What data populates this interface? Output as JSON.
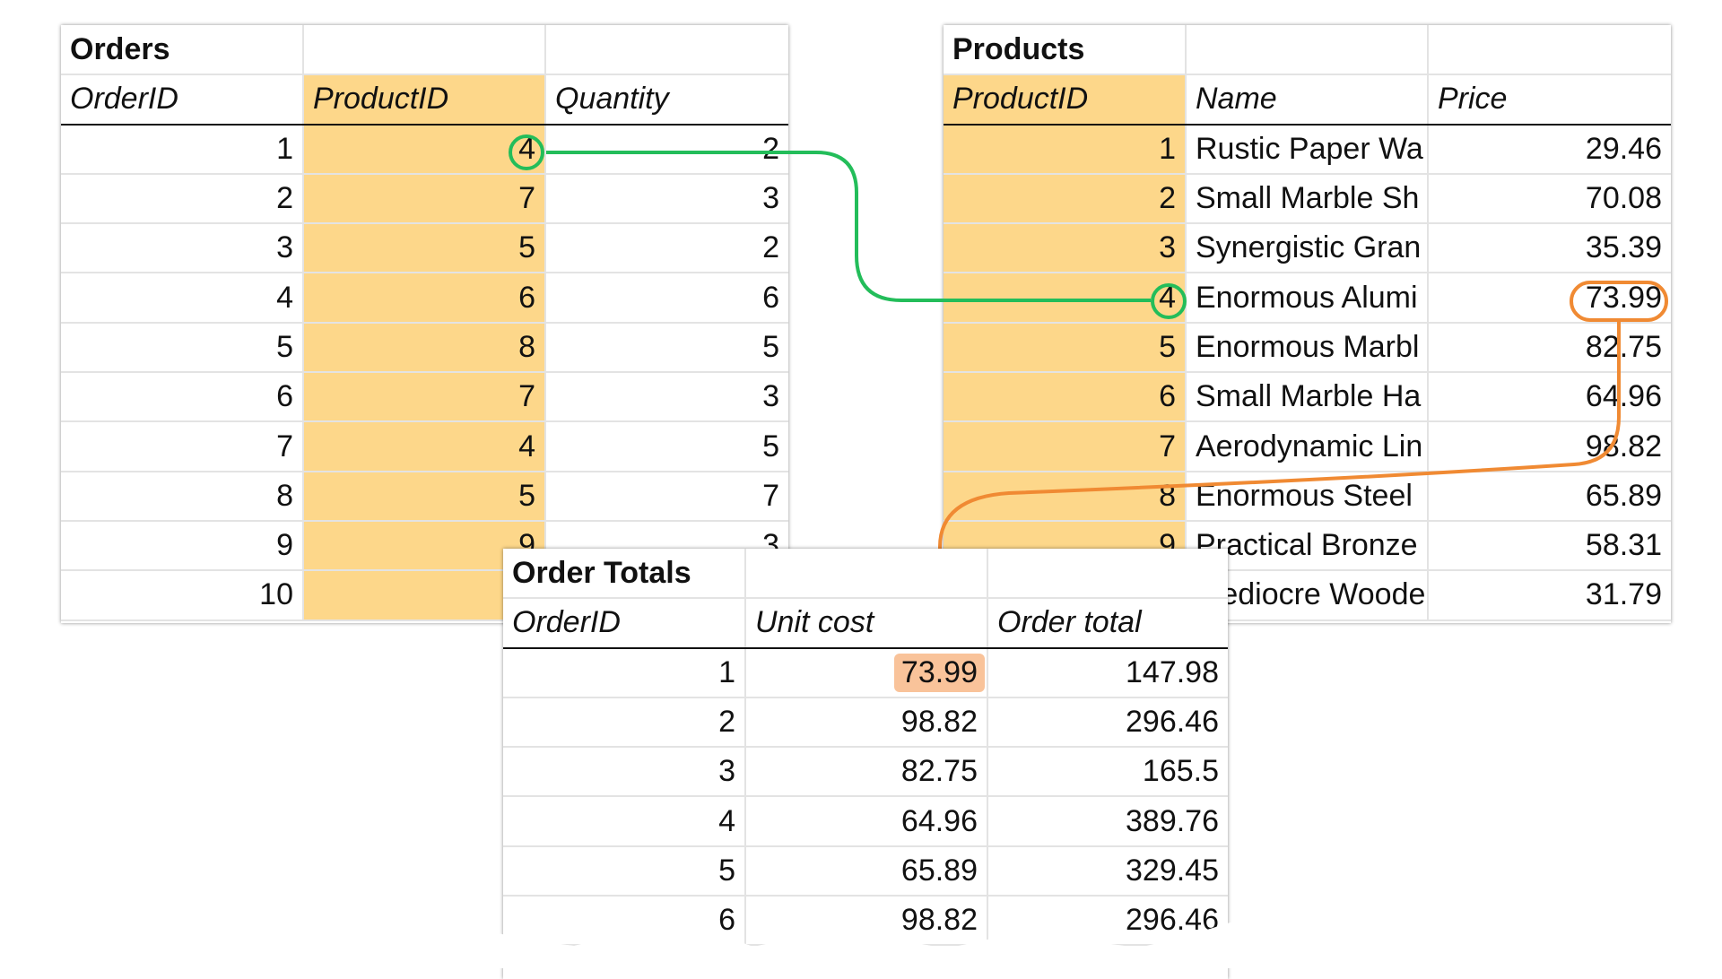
{
  "orders": {
    "title": "Orders",
    "headers": [
      "OrderID",
      "ProductID",
      "Quantity"
    ],
    "rows": [
      [
        "1",
        "4",
        "2"
      ],
      [
        "2",
        "7",
        "3"
      ],
      [
        "3",
        "5",
        "2"
      ],
      [
        "4",
        "6",
        "6"
      ],
      [
        "5",
        "8",
        "5"
      ],
      [
        "6",
        "7",
        "3"
      ],
      [
        "7",
        "4",
        "5"
      ],
      [
        "8",
        "5",
        "7"
      ],
      [
        "9",
        "9",
        "3"
      ],
      [
        "10",
        "",
        ""
      ]
    ]
  },
  "products": {
    "title": "Products",
    "headers": [
      "ProductID",
      "Name",
      "Price"
    ],
    "rows": [
      [
        "1",
        "Rustic Paper Wa",
        "29.46"
      ],
      [
        "2",
        "Small Marble Sh",
        "70.08"
      ],
      [
        "3",
        "Synergistic Gran",
        "35.39"
      ],
      [
        "4",
        "Enormous Alumi",
        "73.99"
      ],
      [
        "5",
        "Enormous Marbl",
        "82.75"
      ],
      [
        "6",
        "Small Marble Ha",
        "64.96"
      ],
      [
        "7",
        "Aerodynamic Lin",
        "98.82"
      ],
      [
        "8",
        "Enormous Steel",
        "65.89"
      ],
      [
        "9",
        "Practical Bronze",
        "58.31"
      ],
      [
        "10",
        "Mediocre Woode",
        "31.79"
      ]
    ]
  },
  "order_totals": {
    "title": "Order Totals",
    "headers": [
      "OrderID",
      "Unit cost",
      "Order total"
    ],
    "rows": [
      [
        "1",
        "73.99",
        "147.98"
      ],
      [
        "2",
        "98.82",
        "296.46"
      ],
      [
        "3",
        "82.75",
        "165.5"
      ],
      [
        "4",
        "64.96",
        "389.76"
      ],
      [
        "5",
        "65.89",
        "329.45"
      ],
      [
        "6",
        "98.82",
        "296.46"
      ]
    ]
  },
  "colors": {
    "key_column": "#fdd78a",
    "lookup_match": "#23bd5a",
    "lookup_value": "#f08a33",
    "result_highlight": "#f9c39a"
  }
}
